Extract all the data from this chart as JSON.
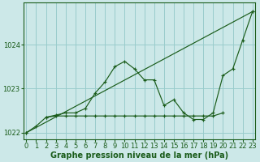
{
  "xlabel": "Graphe pression niveau de la mer (hPa)",
  "bg_color": "#cce8e8",
  "grid_color": "#99cccc",
  "line_color": "#1a5c1a",
  "ylim": [
    1021.85,
    1024.95
  ],
  "yticks": [
    1022,
    1023,
    1024
  ],
  "xlim": [
    -0.3,
    23.3
  ],
  "xticks": [
    0,
    1,
    2,
    3,
    4,
    5,
    6,
    7,
    8,
    9,
    10,
    11,
    12,
    13,
    14,
    15,
    16,
    17,
    18,
    19,
    20,
    21,
    22,
    23
  ],
  "series1_x": [
    0,
    1,
    2,
    3,
    4,
    5,
    6,
    7,
    8,
    9,
    10,
    11,
    12,
    13,
    14,
    15,
    16,
    17,
    18,
    19,
    20,
    21,
    22,
    23
  ],
  "series1_y": [
    1022.0,
    1022.15,
    1022.35,
    1022.4,
    1022.45,
    1022.45,
    1022.55,
    1022.9,
    1023.15,
    1023.5,
    1023.62,
    1023.45,
    1023.2,
    1023.2,
    1022.62,
    1022.75,
    1022.45,
    1022.3,
    1022.3,
    1022.45,
    1023.3,
    1023.45,
    1024.1,
    1024.75
  ],
  "series2_x": [
    0,
    23
  ],
  "series2_y": [
    1022.0,
    1024.75
  ],
  "series3_x": [
    2,
    3,
    4,
    5,
    6,
    7,
    8,
    9,
    10,
    11,
    12,
    13,
    14,
    15,
    16,
    17,
    18,
    19,
    20
  ],
  "series3_y": [
    1022.35,
    1022.38,
    1022.38,
    1022.38,
    1022.38,
    1022.38,
    1022.38,
    1022.38,
    1022.38,
    1022.38,
    1022.38,
    1022.38,
    1022.38,
    1022.38,
    1022.38,
    1022.38,
    1022.38,
    1022.38,
    1022.45
  ],
  "label_fontsize": 7,
  "tick_fontsize": 6
}
